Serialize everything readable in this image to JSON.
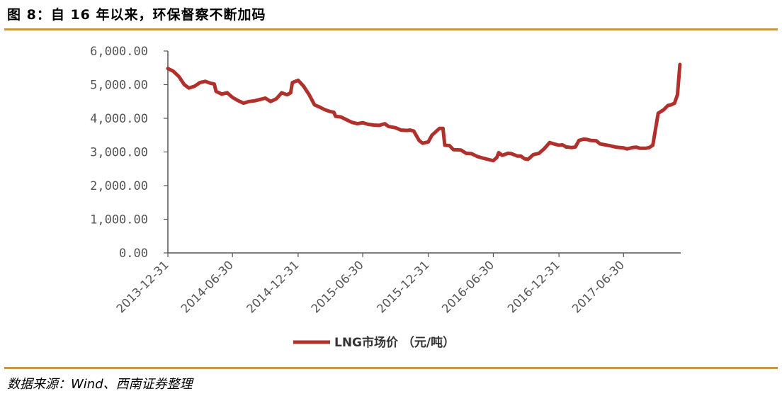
{
  "figure": {
    "title": "图 8：自 16 年以来，环保督察不断加码",
    "source": "数据来源：Wind、西南证券整理"
  },
  "colors": {
    "line": "#b0302c",
    "rule": "#c49a46",
    "axis": "#555555"
  },
  "chart_data": {
    "type": "line",
    "title": "",
    "xlabel": "",
    "ylabel": "",
    "ylim": [
      0,
      6000
    ],
    "yticks": [
      "0.00",
      "1,000.00",
      "2,000.00",
      "3,000.00",
      "4,000.00",
      "5,000.00",
      "6,000.00"
    ],
    "xlim": [
      "2013-12-31",
      "2017-12-31"
    ],
    "xticks": [
      "2013-12-31",
      "2014-06-30",
      "2014-12-31",
      "2015-06-30",
      "2015-12-31",
      "2016-06-30",
      "2016-12-31",
      "2017-06-30"
    ],
    "grid": false,
    "legend": "bottom",
    "series": [
      {
        "name": "LNG市场价 （元/吨）",
        "points": [
          [
            "2013-12-31",
            5480
          ],
          [
            "2014-01-15",
            5400
          ],
          [
            "2014-01-31",
            5240
          ],
          [
            "2014-02-15",
            5000
          ],
          [
            "2014-02-28",
            4900
          ],
          [
            "2014-03-15",
            4950
          ],
          [
            "2014-03-31",
            5060
          ],
          [
            "2014-04-15",
            5100
          ],
          [
            "2014-04-30",
            5040
          ],
          [
            "2014-05-10",
            5020
          ],
          [
            "2014-05-15",
            4800
          ],
          [
            "2014-05-31",
            4720
          ],
          [
            "2014-06-15",
            4760
          ],
          [
            "2014-06-30",
            4620
          ],
          [
            "2014-07-15",
            4530
          ],
          [
            "2014-07-31",
            4450
          ],
          [
            "2014-08-15",
            4500
          ],
          [
            "2014-08-31",
            4520
          ],
          [
            "2014-09-15",
            4560
          ],
          [
            "2014-09-30",
            4600
          ],
          [
            "2014-10-15",
            4500
          ],
          [
            "2014-10-31",
            4580
          ],
          [
            "2014-11-15",
            4760
          ],
          [
            "2014-11-30",
            4700
          ],
          [
            "2014-12-10",
            4760
          ],
          [
            "2014-12-15",
            5060
          ],
          [
            "2014-12-31",
            5130
          ],
          [
            "2015-01-15",
            4960
          ],
          [
            "2015-01-31",
            4700
          ],
          [
            "2015-02-15",
            4400
          ],
          [
            "2015-02-28",
            4340
          ],
          [
            "2015-03-15",
            4260
          ],
          [
            "2015-03-31",
            4200
          ],
          [
            "2015-04-10",
            4180
          ],
          [
            "2015-04-15",
            4060
          ],
          [
            "2015-04-30",
            4040
          ],
          [
            "2015-05-15",
            3960
          ],
          [
            "2015-05-31",
            3880
          ],
          [
            "2015-06-15",
            3840
          ],
          [
            "2015-06-30",
            3870
          ],
          [
            "2015-07-15",
            3820
          ],
          [
            "2015-07-31",
            3800
          ],
          [
            "2015-08-15",
            3790
          ],
          [
            "2015-08-31",
            3840
          ],
          [
            "2015-09-10",
            3760
          ],
          [
            "2015-09-30",
            3720
          ],
          [
            "2015-10-15",
            3650
          ],
          [
            "2015-10-31",
            3640
          ],
          [
            "2015-11-10",
            3650
          ],
          [
            "2015-11-20",
            3620
          ],
          [
            "2015-12-05",
            3340
          ],
          [
            "2015-12-15",
            3260
          ],
          [
            "2015-12-31",
            3300
          ],
          [
            "2016-01-10",
            3500
          ],
          [
            "2016-01-31",
            3700
          ],
          [
            "2016-02-10",
            3700
          ],
          [
            "2016-02-15",
            3200
          ],
          [
            "2016-02-28",
            3190
          ],
          [
            "2016-03-10",
            3070
          ],
          [
            "2016-03-31",
            3060
          ],
          [
            "2016-04-15",
            2960
          ],
          [
            "2016-04-30",
            2950
          ],
          [
            "2016-05-15",
            2870
          ],
          [
            "2016-05-31",
            2820
          ],
          [
            "2016-06-15",
            2780
          ],
          [
            "2016-06-30",
            2740
          ],
          [
            "2016-07-10",
            2840
          ],
          [
            "2016-07-15",
            2980
          ],
          [
            "2016-07-25",
            2900
          ],
          [
            "2016-08-10",
            2960
          ],
          [
            "2016-08-20",
            2950
          ],
          [
            "2016-09-05",
            2880
          ],
          [
            "2016-09-15",
            2880
          ],
          [
            "2016-09-25",
            2800
          ],
          [
            "2016-10-05",
            2780
          ],
          [
            "2016-10-20",
            2920
          ],
          [
            "2016-11-05",
            2960
          ],
          [
            "2016-11-20",
            3100
          ],
          [
            "2016-12-05",
            3280
          ],
          [
            "2016-12-20",
            3230
          ],
          [
            "2016-12-31",
            3200
          ],
          [
            "2017-01-10",
            3210
          ],
          [
            "2017-01-20",
            3150
          ],
          [
            "2017-02-05",
            3130
          ],
          [
            "2017-02-15",
            3150
          ],
          [
            "2017-02-25",
            3340
          ],
          [
            "2017-03-10",
            3380
          ],
          [
            "2017-03-20",
            3370
          ],
          [
            "2017-03-31",
            3340
          ],
          [
            "2017-04-15",
            3330
          ],
          [
            "2017-04-25",
            3240
          ],
          [
            "2017-05-10",
            3210
          ],
          [
            "2017-05-25",
            3180
          ],
          [
            "2017-06-10",
            3140
          ],
          [
            "2017-06-30",
            3120
          ],
          [
            "2017-07-10",
            3090
          ],
          [
            "2017-07-25",
            3130
          ],
          [
            "2017-08-05",
            3140
          ],
          [
            "2017-08-15",
            3110
          ],
          [
            "2017-08-31",
            3110
          ],
          [
            "2017-09-10",
            3130
          ],
          [
            "2017-09-20",
            3200
          ],
          [
            "2017-10-05",
            4150
          ],
          [
            "2017-10-20",
            4250
          ],
          [
            "2017-11-01",
            4380
          ],
          [
            "2017-11-10",
            4400
          ],
          [
            "2017-11-20",
            4450
          ],
          [
            "2017-11-28",
            4700
          ],
          [
            "2017-12-05",
            5600
          ]
        ]
      }
    ]
  }
}
